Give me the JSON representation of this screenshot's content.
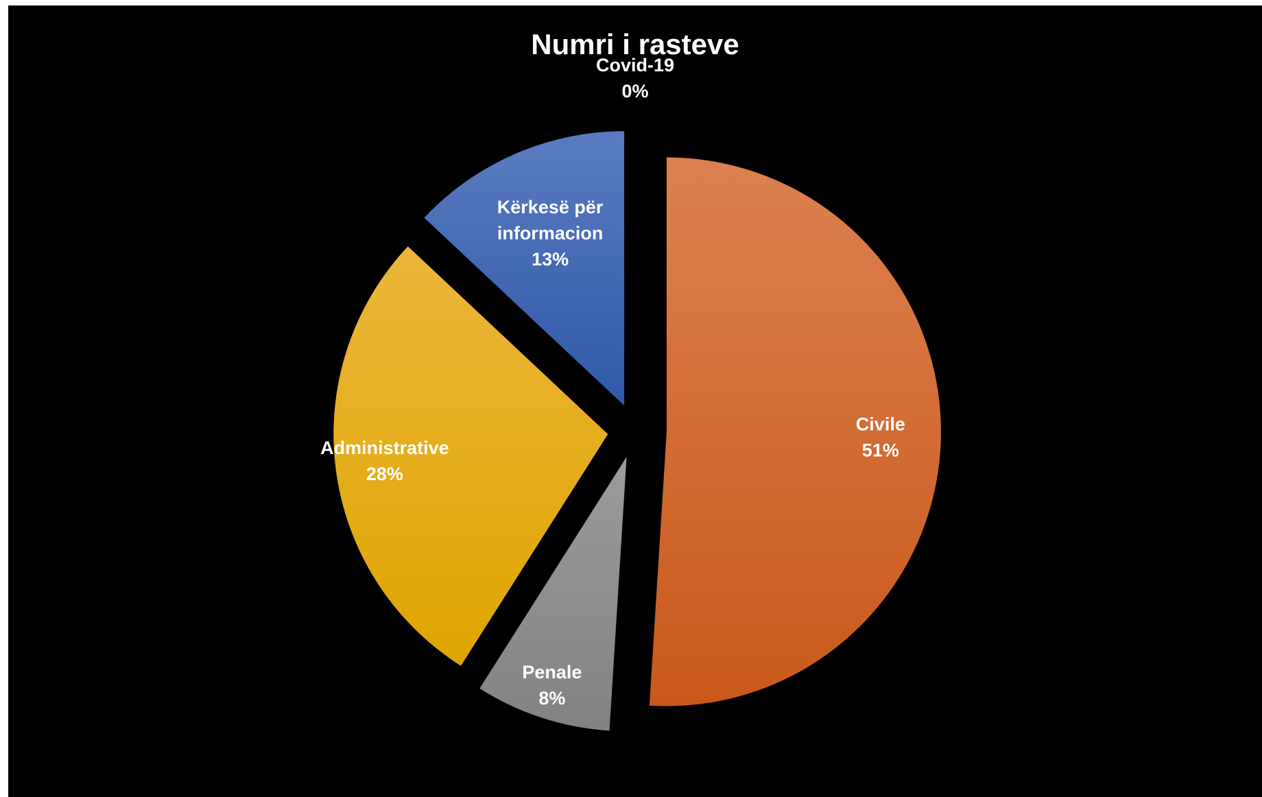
{
  "chart_data": {
    "type": "pie",
    "title": "Numri i rasteve",
    "slices": [
      {
        "name": "Civile",
        "label_lines": [
          "Civile"
        ],
        "percent_label": "51%",
        "value": 51,
        "color_top": "#dc8150",
        "color_bottom": "#c9581a"
      },
      {
        "name": "Penale",
        "label_lines": [
          "Penale"
        ],
        "percent_label": "8%",
        "value": 8,
        "color_top": "#9b9b9b",
        "color_bottom": "#828282"
      },
      {
        "name": "Administrative",
        "label_lines": [
          "Administrative"
        ],
        "percent_label": "28%",
        "value": 28,
        "color_top": "#ecb63b",
        "color_bottom": "#dea500"
      },
      {
        "name": "Kërkesë për informacion",
        "label_lines": [
          "Kërkesë për",
          "informacion"
        ],
        "percent_label": "13%",
        "value": 13,
        "color_top": "#5a7bc0",
        "color_bottom": "#2f59a8"
      },
      {
        "name": "Covid-19",
        "label_lines": [
          "Covid-19"
        ],
        "percent_label": "0%",
        "value": 0,
        "color_top": "#888888",
        "color_bottom": "#888888"
      }
    ],
    "background": "#000000",
    "label_color": "#ffffff",
    "legend": "none"
  }
}
